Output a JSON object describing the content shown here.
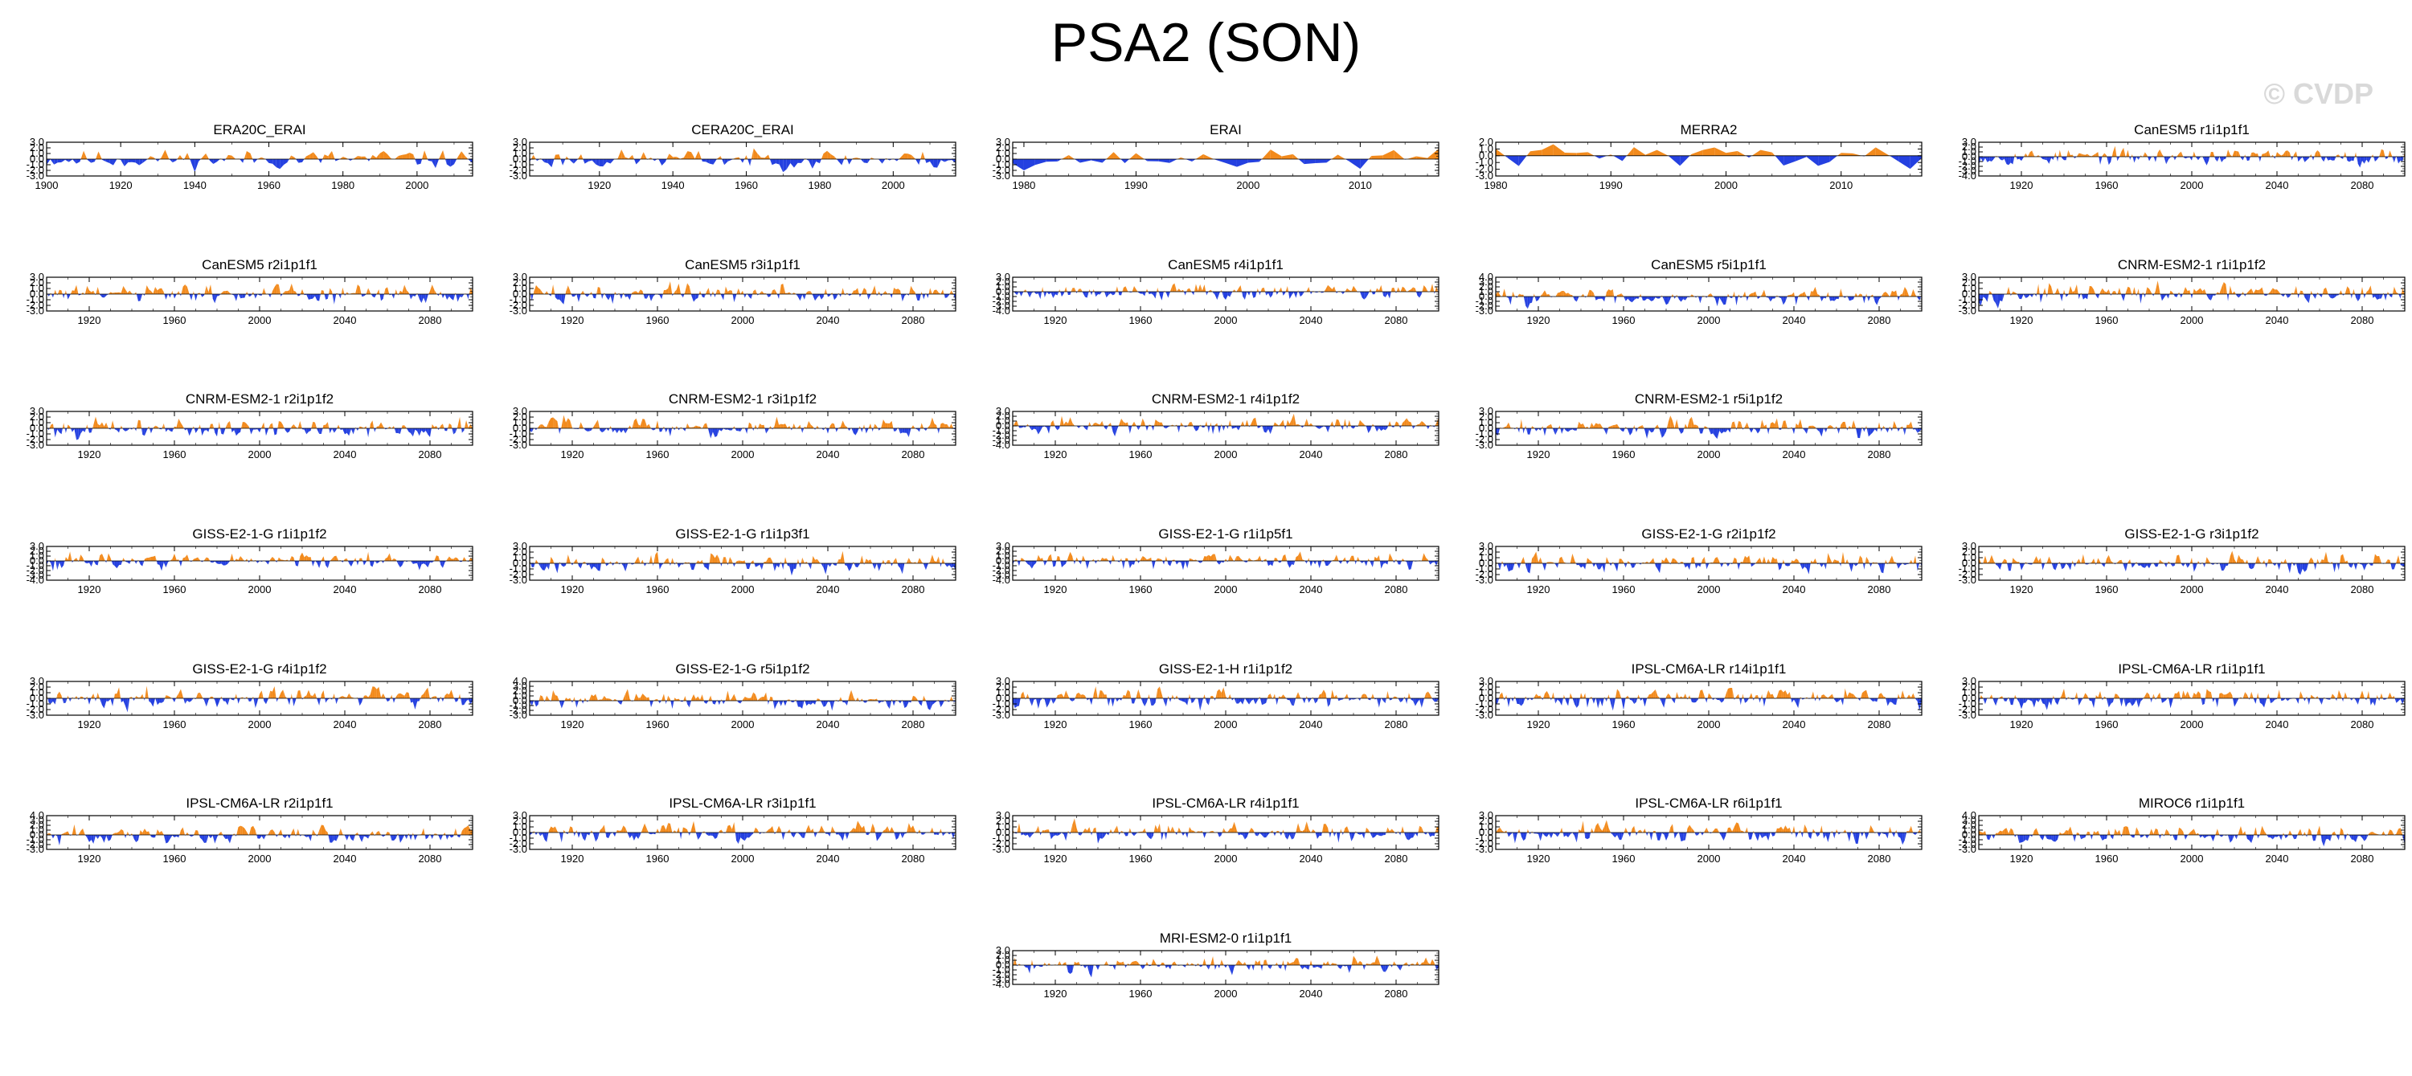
{
  "page_title": "PSA2 (SON)",
  "watermark": "© CVDP",
  "colors": {
    "positive": "#f28a1c",
    "negative": "#2440e0",
    "axis": "#000000"
  },
  "chart_data": [
    {
      "title": "ERA20C_ERAI",
      "type": "area",
      "x_start": 1900,
      "x_end": 2015,
      "ylim": [
        -3.0,
        3.0
      ],
      "yticks": [
        3.0,
        2.0,
        1.0,
        0.0,
        -1.0,
        -2.0,
        -3.0
      ],
      "xticks": [
        1900,
        1920,
        1940,
        1960,
        1980,
        2000
      ],
      "seed": 11
    },
    {
      "title": "CERA20C_ERAI",
      "type": "area",
      "x_start": 1901,
      "x_end": 2017,
      "ylim": [
        -3.0,
        3.0
      ],
      "yticks": [
        3.0,
        2.0,
        1.0,
        0.0,
        -1.0,
        -2.0,
        -3.0
      ],
      "xticks": [
        1920,
        1940,
        1960,
        1980,
        2000
      ],
      "seed": 23
    },
    {
      "title": "ERAI",
      "type": "area",
      "x_start": 1979,
      "x_end": 2017,
      "ylim": [
        -3.0,
        3.0
      ],
      "yticks": [
        3.0,
        2.0,
        1.0,
        0.0,
        -1.0,
        -2.0,
        -3.0
      ],
      "xticks": [
        1980,
        1990,
        2000,
        2010
      ],
      "seed": 37
    },
    {
      "title": "MERRA2",
      "type": "area",
      "x_start": 1980,
      "x_end": 2017,
      "ylim": [
        -3.0,
        2.0
      ],
      "yticks": [
        2.0,
        1.0,
        0.0,
        -1.0,
        -2.0,
        -3.0
      ],
      "xticks": [
        1980,
        1990,
        2000,
        2010
      ],
      "seed": 41
    },
    {
      "title": "CanESM5 r1i1p1f1",
      "type": "area",
      "x_start": 1900,
      "x_end": 2100,
      "ylim": [
        -4.0,
        3.0
      ],
      "yticks": [
        3.0,
        2.0,
        1.0,
        0.0,
        -1.0,
        -2.0,
        -3.0,
        -4.0
      ],
      "xticks": [
        1920,
        1960,
        2000,
        2040,
        2080
      ],
      "seed": 53
    },
    {
      "title": "CanESM5 r2i1p1f1",
      "type": "area",
      "x_start": 1900,
      "x_end": 2100,
      "ylim": [
        -3.0,
        3.0
      ],
      "yticks": [
        3.0,
        2.0,
        1.0,
        0.0,
        -1.0,
        -2.0,
        -3.0
      ],
      "xticks": [
        1920,
        1960,
        2000,
        2040,
        2080
      ],
      "seed": 61
    },
    {
      "title": "CanESM5 r3i1p1f1",
      "type": "area",
      "x_start": 1900,
      "x_end": 2100,
      "ylim": [
        -3.0,
        3.0
      ],
      "yticks": [
        3.0,
        2.0,
        1.0,
        0.0,
        -1.0,
        -2.0,
        -3.0
      ],
      "xticks": [
        1920,
        1960,
        2000,
        2040,
        2080
      ],
      "seed": 73
    },
    {
      "title": "CanESM5 r4i1p1f1",
      "type": "area",
      "x_start": 1900,
      "x_end": 2100,
      "ylim": [
        -4.0,
        3.0
      ],
      "yticks": [
        3.0,
        2.0,
        1.0,
        0.0,
        -1.0,
        -2.0,
        -3.0,
        -4.0
      ],
      "xticks": [
        1920,
        1960,
        2000,
        2040,
        2080
      ],
      "seed": 79
    },
    {
      "title": "CanESM5 r5i1p1f1",
      "type": "area",
      "x_start": 1900,
      "x_end": 2100,
      "ylim": [
        -3.0,
        4.0
      ],
      "yticks": [
        4.0,
        3.0,
        2.0,
        1.0,
        0.0,
        -1.0,
        -2.0,
        -3.0
      ],
      "xticks": [
        1920,
        1960,
        2000,
        2040,
        2080
      ],
      "seed": 83
    },
    {
      "title": "CNRM-ESM2-1 r1i1p1f2",
      "type": "area",
      "x_start": 1900,
      "x_end": 2100,
      "ylim": [
        -3.0,
        3.0
      ],
      "yticks": [
        3.0,
        2.0,
        1.0,
        0.0,
        -1.0,
        -2.0,
        -3.0
      ],
      "xticks": [
        1920,
        1960,
        2000,
        2040,
        2080
      ],
      "seed": 97
    },
    {
      "title": "CNRM-ESM2-1 r2i1p1f2",
      "type": "area",
      "x_start": 1900,
      "x_end": 2100,
      "ylim": [
        -3.0,
        3.0
      ],
      "yticks": [
        3.0,
        2.0,
        1.0,
        0.0,
        -1.0,
        -2.0,
        -3.0
      ],
      "xticks": [
        1920,
        1960,
        2000,
        2040,
        2080
      ],
      "seed": 101
    },
    {
      "title": "CNRM-ESM2-1 r3i1p1f2",
      "type": "area",
      "x_start": 1900,
      "x_end": 2100,
      "ylim": [
        -3.0,
        3.0
      ],
      "yticks": [
        3.0,
        2.0,
        1.0,
        0.0,
        -1.0,
        -2.0,
        -3.0
      ],
      "xticks": [
        1920,
        1960,
        2000,
        2040,
        2080
      ],
      "seed": 103
    },
    {
      "title": "CNRM-ESM2-1 r4i1p1f2",
      "type": "area",
      "x_start": 1900,
      "x_end": 2100,
      "ylim": [
        -4.0,
        3.0
      ],
      "yticks": [
        3.0,
        2.0,
        1.0,
        0.0,
        -1.0,
        -2.0,
        -3.0,
        -4.0
      ],
      "xticks": [
        1920,
        1960,
        2000,
        2040,
        2080
      ],
      "seed": 107
    },
    {
      "title": "CNRM-ESM2-1 r5i1p1f2",
      "type": "area",
      "x_start": 1900,
      "x_end": 2100,
      "ylim": [
        -3.0,
        3.0
      ],
      "yticks": [
        3.0,
        2.0,
        1.0,
        0.0,
        -1.0,
        -2.0,
        -3.0
      ],
      "xticks": [
        1920,
        1960,
        2000,
        2040,
        2080
      ],
      "seed": 109
    },
    null,
    {
      "title": "GISS-E2-1-G r1i1p1f2",
      "type": "area",
      "x_start": 1900,
      "x_end": 2100,
      "ylim": [
        -4.0,
        3.0
      ],
      "yticks": [
        3.0,
        2.0,
        1.0,
        0.0,
        -1.0,
        -2.0,
        -3.0,
        -4.0
      ],
      "xticks": [
        1920,
        1960,
        2000,
        2040,
        2080
      ],
      "seed": 113
    },
    {
      "title": "GISS-E2-1-G r1i1p3f1",
      "type": "area",
      "x_start": 1900,
      "x_end": 2100,
      "ylim": [
        -3.0,
        3.0
      ],
      "yticks": [
        3.0,
        2.0,
        1.0,
        0.0,
        -1.0,
        -2.0,
        -3.0
      ],
      "xticks": [
        1920,
        1960,
        2000,
        2040,
        2080
      ],
      "seed": 127
    },
    {
      "title": "GISS-E2-1-G r1i1p5f1",
      "type": "area",
      "x_start": 1900,
      "x_end": 2100,
      "ylim": [
        -4.0,
        3.0
      ],
      "yticks": [
        3.0,
        2.0,
        1.0,
        0.0,
        -1.0,
        -2.0,
        -3.0,
        -4.0
      ],
      "xticks": [
        1920,
        1960,
        2000,
        2040,
        2080
      ],
      "seed": 131
    },
    {
      "title": "GISS-E2-1-G r2i1p1f2",
      "type": "area",
      "x_start": 1900,
      "x_end": 2100,
      "ylim": [
        -3.0,
        3.0
      ],
      "yticks": [
        3.0,
        2.0,
        1.0,
        0.0,
        -1.0,
        -2.0,
        -3.0
      ],
      "xticks": [
        1920,
        1960,
        2000,
        2040,
        2080
      ],
      "seed": 137
    },
    {
      "title": "GISS-E2-1-G r3i1p1f2",
      "type": "area",
      "x_start": 1900,
      "x_end": 2100,
      "ylim": [
        -3.0,
        3.0
      ],
      "yticks": [
        3.0,
        2.0,
        1.0,
        0.0,
        -1.0,
        -2.0,
        -3.0
      ],
      "xticks": [
        1920,
        1960,
        2000,
        2040,
        2080
      ],
      "seed": 139
    },
    {
      "title": "GISS-E2-1-G r4i1p1f2",
      "type": "area",
      "x_start": 1900,
      "x_end": 2100,
      "ylim": [
        -3.0,
        3.0
      ],
      "yticks": [
        3.0,
        2.0,
        1.0,
        0.0,
        -1.0,
        -2.0,
        -3.0
      ],
      "xticks": [
        1920,
        1960,
        2000,
        2040,
        2080
      ],
      "seed": 149
    },
    {
      "title": "GISS-E2-1-G r5i1p1f2",
      "type": "area",
      "x_start": 1900,
      "x_end": 2100,
      "ylim": [
        -3.0,
        4.0
      ],
      "yticks": [
        4.0,
        3.0,
        2.0,
        1.0,
        0.0,
        -1.0,
        -2.0,
        -3.0
      ],
      "xticks": [
        1920,
        1960,
        2000,
        2040,
        2080
      ],
      "seed": 151
    },
    {
      "title": "GISS-E2-1-H r1i1p1f2",
      "type": "area",
      "x_start": 1900,
      "x_end": 2100,
      "ylim": [
        -3.0,
        3.0
      ],
      "yticks": [
        3.0,
        2.0,
        1.0,
        0.0,
        -1.0,
        -2.0,
        -3.0
      ],
      "xticks": [
        1920,
        1960,
        2000,
        2040,
        2080
      ],
      "seed": 157
    },
    {
      "title": "IPSL-CM6A-LR r14i1p1f1",
      "type": "area",
      "x_start": 1900,
      "x_end": 2100,
      "ylim": [
        -3.0,
        3.0
      ],
      "yticks": [
        3.0,
        2.0,
        1.0,
        0.0,
        -1.0,
        -2.0,
        -3.0
      ],
      "xticks": [
        1920,
        1960,
        2000,
        2040,
        2080
      ],
      "seed": 163
    },
    {
      "title": "IPSL-CM6A-LR r1i1p1f1",
      "type": "area",
      "x_start": 1900,
      "x_end": 2100,
      "ylim": [
        -3.0,
        3.0
      ],
      "yticks": [
        3.0,
        2.0,
        1.0,
        0.0,
        -1.0,
        -2.0,
        -3.0
      ],
      "xticks": [
        1920,
        1960,
        2000,
        2040,
        2080
      ],
      "seed": 167
    },
    {
      "title": "IPSL-CM6A-LR r2i1p1f1",
      "type": "area",
      "x_start": 1900,
      "x_end": 2100,
      "ylim": [
        -3.0,
        4.0
      ],
      "yticks": [
        4.0,
        3.0,
        2.0,
        1.0,
        0.0,
        -1.0,
        -2.0,
        -3.0
      ],
      "xticks": [
        1920,
        1960,
        2000,
        2040,
        2080
      ],
      "seed": 173
    },
    {
      "title": "IPSL-CM6A-LR r3i1p1f1",
      "type": "area",
      "x_start": 1900,
      "x_end": 2100,
      "ylim": [
        -3.0,
        3.0
      ],
      "yticks": [
        3.0,
        2.0,
        1.0,
        0.0,
        -1.0,
        -2.0,
        -3.0
      ],
      "xticks": [
        1920,
        1960,
        2000,
        2040,
        2080
      ],
      "seed": 179
    },
    {
      "title": "IPSL-CM6A-LR r4i1p1f1",
      "type": "area",
      "x_start": 1900,
      "x_end": 2100,
      "ylim": [
        -3.0,
        3.0
      ],
      "yticks": [
        3.0,
        2.0,
        1.0,
        0.0,
        -1.0,
        -2.0,
        -3.0
      ],
      "xticks": [
        1920,
        1960,
        2000,
        2040,
        2080
      ],
      "seed": 181
    },
    {
      "title": "IPSL-CM6A-LR r6i1p1f1",
      "type": "area",
      "x_start": 1900,
      "x_end": 2100,
      "ylim": [
        -3.0,
        3.0
      ],
      "yticks": [
        3.0,
        2.0,
        1.0,
        0.0,
        -1.0,
        -2.0,
        -3.0
      ],
      "xticks": [
        1920,
        1960,
        2000,
        2040,
        2080
      ],
      "seed": 191
    },
    {
      "title": "MIROC6 r1i1p1f1",
      "type": "area",
      "x_start": 1900,
      "x_end": 2100,
      "ylim": [
        -3.0,
        4.0
      ],
      "yticks": [
        4.0,
        3.0,
        2.0,
        1.0,
        0.0,
        -1.0,
        -2.0,
        -3.0
      ],
      "xticks": [
        1920,
        1960,
        2000,
        2040,
        2080
      ],
      "seed": 193
    },
    null,
    null,
    {
      "title": "MRI-ESM2-0 r1i1p1f1",
      "type": "area",
      "x_start": 1900,
      "x_end": 2100,
      "ylim": [
        -4.0,
        3.0
      ],
      "yticks": [
        3.0,
        2.0,
        1.0,
        0.0,
        -1.0,
        -2.0,
        -3.0,
        -4.0
      ],
      "xticks": [
        1920,
        1960,
        2000,
        2040,
        2080
      ],
      "seed": 197
    },
    null,
    null
  ]
}
